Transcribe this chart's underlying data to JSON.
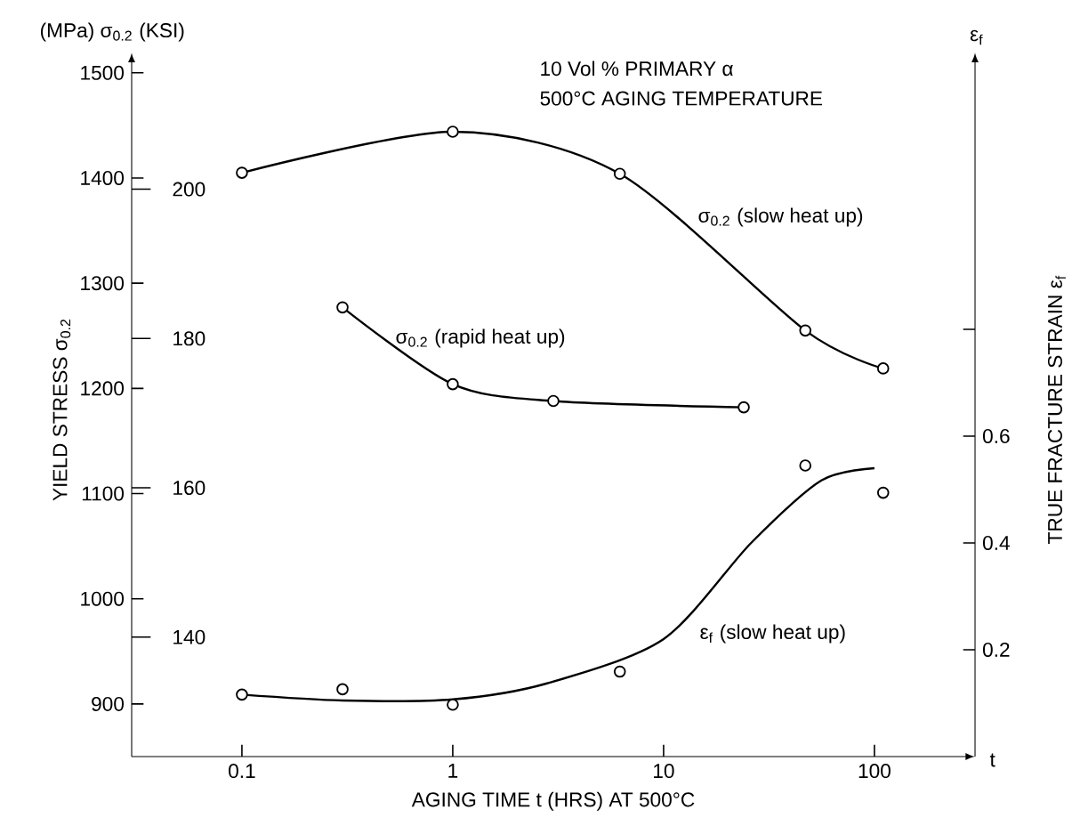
{
  "chart_data": {
    "type": "line",
    "title": "10 Vol % PRIMARY α",
    "subtitle": "500°C AGING TEMPERATURE",
    "xlabel": "AGING TIME t (HRS) AT 500°C",
    "ylabel": "YIELD STRESS σ$_{0.2}$",
    "y3label": "TRUE FRACTURE STRAIN ε$_{f}$",
    "annotations": [
      "(MPa) σ$_{0.2}$ (KSI)",
      "ε$_{f}$",
      "t"
    ],
    "log": "x",
    "grid": false,
    "xlim": [
      0.03,
      300
    ],
    "xticks": [
      0.1,
      1,
      10,
      100
    ],
    "ylim": [
      850,
      1510
    ],
    "yticks": [
      900,
      1000,
      1100,
      1200,
      1300,
      1400,
      1500
    ],
    "y2lim": [
      124,
      217
    ],
    "y2ticks": [
      140,
      160,
      180,
      200
    ],
    "y3lim": [
      0,
      1.3
    ],
    "y3ticks": [
      {
        "value": 0.2,
        "label": "0.2"
      },
      {
        "value": 0.4,
        "label": "0.4"
      },
      {
        "value": 0.6,
        "label": "0.6"
      },
      {
        "value": 0.8,
        "label": null
      }
    ],
    "series": [
      {
        "name": "σ$_{0.2}$ (slow heat up)",
        "marker": "circle",
        "color": "#000000",
        "x": [
          0.1,
          1,
          6.2,
          47,
          110
        ],
        "values": [
          1405,
          1444,
          1404,
          1255,
          1219
        ]
      },
      {
        "name": "σ$_{0.2}$ (rapid heat up)",
        "marker": "circle",
        "color": "#000000",
        "x": [
          0.3,
          1,
          3,
          24
        ],
        "values": [
          1277,
          1204,
          1188,
          1182
        ]
      },
      {
        "name": "ε$_{f}$ (slow heat up)",
        "marker": "none",
        "axis": "y3",
        "color": "#000000",
        "x": [
          0.1,
          0.3,
          1,
          2.8,
          10,
          26,
          56,
          100
        ],
        "values": [
          0.116,
          0.105,
          0.107,
          0.137,
          0.22,
          0.4,
          0.517,
          0.54
        ]
      },
      {
        "type": "scatter",
        "marker": "circle",
        "axis": "y3",
        "color": "#000000",
        "x": [
          0.1,
          0.3,
          1,
          6.2,
          47,
          110
        ],
        "values": [
          0.116,
          0.126,
          0.097,
          0.159,
          0.545,
          0.494
        ]
      }
    ]
  }
}
